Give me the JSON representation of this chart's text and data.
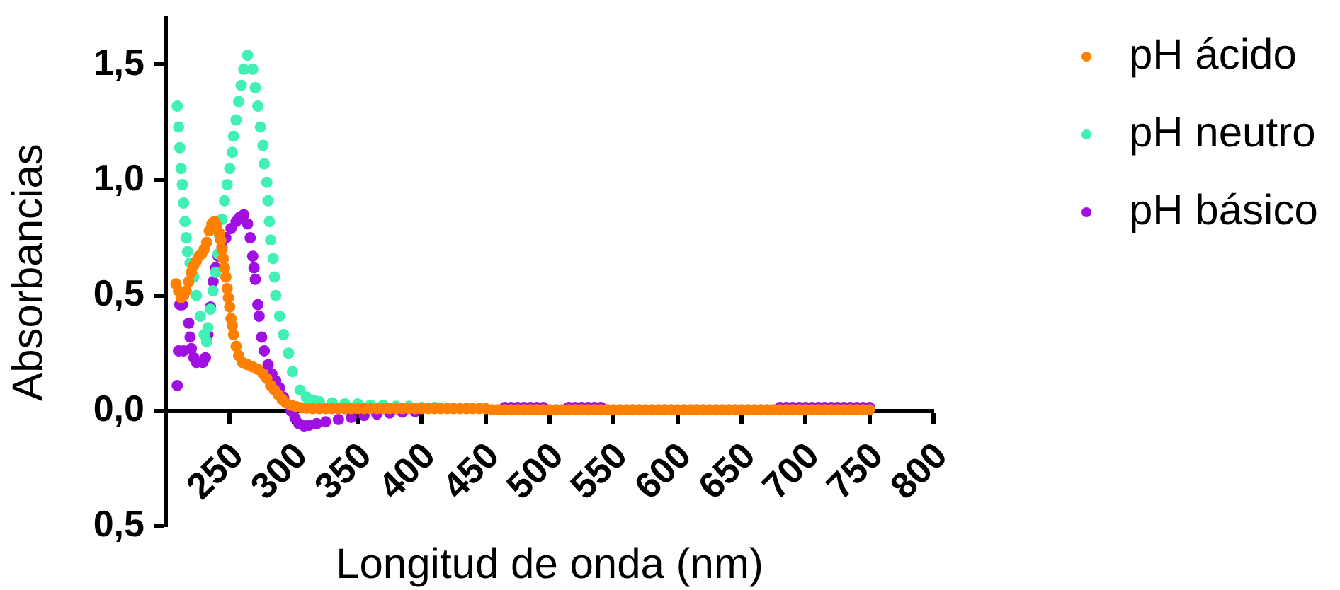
{
  "chart_data": {
    "type": "scatter",
    "xlabel": "Longitud de onda (nm)",
    "ylabel": "Absorbancias",
    "xlim": [
      200,
      800
    ],
    "xticks": [
      250,
      300,
      350,
      400,
      450,
      500,
      550,
      600,
      650,
      700,
      750,
      800
    ],
    "ylim": [
      -0.5,
      1.7
    ],
    "yticks": [
      {
        "value": 1.5,
        "label": "1,5"
      },
      {
        "value": 1,
        "label": "1,0"
      },
      {
        "value": 0.5,
        "label": "0,5"
      },
      {
        "value": 0,
        "label": "0,0"
      },
      {
        "value": -0.5,
        "label": "0,5"
      }
    ],
    "grid": false,
    "legend": "top right",
    "marker": "circle",
    "series": [
      {
        "name": "pH ácido",
        "color": "#ff8000",
        "x": [
          208,
          210,
          212,
          214,
          216,
          218,
          220,
          222,
          224,
          226,
          228,
          230,
          232,
          234,
          236,
          238,
          240,
          242,
          243,
          244,
          245,
          246,
          247,
          248,
          249,
          250,
          251,
          252,
          253,
          255,
          257,
          260,
          264,
          268,
          272,
          276,
          279,
          282,
          285,
          288,
          291,
          294,
          298,
          302,
          306,
          310,
          315,
          320,
          325,
          330,
          335,
          340,
          345,
          350,
          355,
          360,
          365,
          370,
          375,
          380,
          385,
          390,
          395,
          400,
          405,
          410,
          415,
          420,
          425,
          430,
          435,
          440,
          445,
          450,
          455,
          460,
          465,
          470,
          475,
          480,
          485,
          490,
          495,
          500,
          505,
          510,
          515,
          520,
          525,
          530,
          535,
          540,
          545,
          550,
          555,
          560,
          565,
          570,
          575,
          580,
          585,
          590,
          595,
          600,
          605,
          610,
          615,
          620,
          625,
          630,
          635,
          640,
          645,
          650,
          655,
          660,
          665,
          670,
          675,
          680,
          685,
          690,
          695,
          700,
          705,
          710,
          715,
          720,
          725,
          730,
          735,
          740,
          745,
          750
        ],
        "values": [
          0.55,
          0.52,
          0.49,
          0.5,
          0.52,
          0.56,
          0.6,
          0.63,
          0.65,
          0.67,
          0.68,
          0.7,
          0.73,
          0.78,
          0.81,
          0.82,
          0.8,
          0.77,
          0.74,
          0.7,
          0.66,
          0.62,
          0.58,
          0.53,
          0.49,
          0.45,
          0.4,
          0.37,
          0.33,
          0.28,
          0.24,
          0.21,
          0.2,
          0.19,
          0.18,
          0.16,
          0.14,
          0.11,
          0.09,
          0.07,
          0.05,
          0.035,
          0.025,
          0.018,
          0.014,
          0.012,
          0.01,
          0.01,
          0.01,
          0.01,
          0.01,
          0.01,
          0.01,
          0.01,
          0.01,
          0.01,
          0.01,
          0.01,
          0.01,
          0.01,
          0.01,
          0.01,
          0.01,
          0.01,
          0.01,
          0.01,
          0.01,
          0.01,
          0.01,
          0.01,
          0.01,
          0.01,
          0.01,
          0.01,
          0.005,
          0.005,
          0.005,
          0.005,
          0.005,
          0.005,
          0.005,
          0.005,
          0.005,
          0.005,
          0.005,
          0.005,
          0.005,
          0.005,
          0.005,
          0.005,
          0.005,
          0.005,
          0.005,
          0.005,
          0.005,
          0.005,
          0.005,
          0.005,
          0.005,
          0.005,
          0.005,
          0.005,
          0.005,
          0.005,
          0.005,
          0.005,
          0.005,
          0.005,
          0.005,
          0.005,
          0.005,
          0.005,
          0.005,
          0.005,
          0.005,
          0.005,
          0.005,
          0.005,
          0.005,
          0.005,
          0.005,
          0.005,
          0.005,
          0.005,
          0.005,
          0.005,
          0.005,
          0.005,
          0.005,
          0.005,
          0.005,
          0.005,
          0.005,
          0.005
        ]
      },
      {
        "name": "pH neutro",
        "color": "#40f0b6",
        "x": [
          209,
          210,
          211,
          212,
          213,
          214,
          215,
          216,
          217,
          219,
          222,
          224,
          227,
          230,
          232,
          233,
          235,
          237,
          239,
          241,
          242,
          244,
          246,
          248,
          250,
          252,
          253,
          255,
          257,
          259,
          261,
          264,
          268,
          270,
          272,
          274,
          276,
          277,
          279,
          280,
          281,
          282,
          284,
          285,
          286,
          289,
          292,
          296,
          299,
          305,
          310,
          316,
          320,
          330,
          340,
          350,
          360,
          370,
          380,
          390,
          400,
          410
        ],
        "values": [
          1.32,
          1.23,
          1.14,
          1.05,
          0.98,
          0.9,
          0.82,
          0.75,
          0.69,
          0.64,
          0.58,
          0.5,
          0.41,
          0.33,
          0.3,
          0.36,
          0.44,
          0.52,
          0.6,
          0.68,
          0.76,
          0.83,
          0.91,
          0.98,
          1.05,
          1.12,
          1.19,
          1.26,
          1.34,
          1.41,
          1.48,
          1.54,
          1.48,
          1.4,
          1.32,
          1.23,
          1.15,
          1.07,
          0.99,
          0.91,
          0.82,
          0.74,
          0.66,
          0.58,
          0.5,
          0.41,
          0.33,
          0.25,
          0.17,
          0.09,
          0.06,
          0.045,
          0.04,
          0.035,
          0.03,
          0.03,
          0.025,
          0.025,
          0.02,
          0.02,
          0.015,
          0.015
        ]
      },
      {
        "name": "pH básico",
        "color": "#a010e0",
        "x": [
          209,
          210,
          211,
          213,
          214,
          218,
          219,
          220,
          222,
          224,
          229,
          231,
          233,
          235,
          237,
          239,
          241,
          244,
          247,
          251,
          255,
          258,
          261,
          264,
          266,
          268,
          269,
          270,
          272,
          273,
          275,
          277,
          280,
          283,
          286,
          289,
          292,
          298,
          301,
          304,
          308,
          312,
          318,
          325,
          335,
          345,
          355,
          365,
          375,
          385,
          395,
          465,
          470,
          475,
          480,
          485,
          490,
          495,
          515,
          520,
          525,
          530,
          535,
          540,
          680,
          685,
          690,
          695,
          700,
          705,
          710,
          715,
          720,
          725,
          730,
          735,
          740,
          745,
          750
        ],
        "values": [
          0.11,
          0.26,
          0.46,
          0.46,
          0.26,
          0.38,
          0.32,
          0.27,
          0.23,
          0.21,
          0.21,
          0.23,
          0.33,
          0.45,
          0.56,
          0.62,
          0.67,
          0.71,
          0.75,
          0.79,
          0.82,
          0.84,
          0.85,
          0.81,
          0.75,
          0.67,
          0.62,
          0.57,
          0.46,
          0.41,
          0.32,
          0.26,
          0.2,
          0.16,
          0.13,
          0.1,
          0.06,
          0,
          -0.03,
          -0.055,
          -0.065,
          -0.062,
          -0.055,
          -0.047,
          -0.037,
          -0.028,
          -0.02,
          -0.014,
          -0.009,
          -0.005,
          -0.002,
          0.015,
          0.015,
          0.015,
          0.015,
          0.015,
          0.015,
          0.015,
          0.015,
          0.015,
          0.015,
          0.015,
          0.015,
          0.015,
          0.015,
          0.015,
          0.015,
          0.015,
          0.015,
          0.015,
          0.015,
          0.015,
          0.015,
          0.015,
          0.015,
          0.015,
          0.015,
          0.015,
          0.015
        ]
      }
    ]
  }
}
